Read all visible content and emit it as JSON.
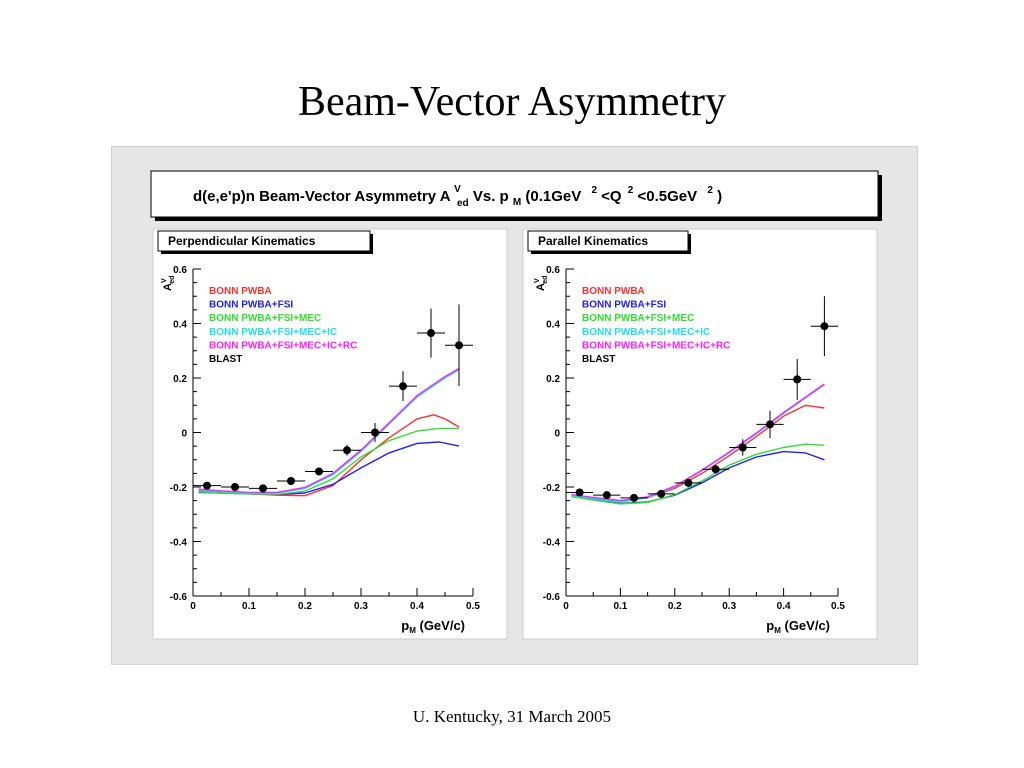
{
  "slide": {
    "title": "Beam-Vector Asymmetry",
    "footer": "U. Kentucky, 31 March 2005"
  },
  "figure": {
    "header": {
      "main": "d(e,e'p)n Beam-Vector Asymmetry A",
      "sup1": "V",
      "sub1": "ed",
      "mid": " Vs. p",
      "sub2": "M",
      "range_a": " (0.1GeV",
      "sup2": "2",
      "range_b": "<Q",
      "sup3": "2",
      "range_c": "<0.5GeV",
      "sup4": "2",
      "range_d": ")"
    }
  },
  "colors": {
    "BONN PWBA": "#ff3030",
    "BONN PWBA+FSI": "#2020ff",
    "BONN PWBA+FSI+MEC": "#30e030",
    "BONN PWBA+FSI+MEC+IC": "#20e0f0",
    "BONN PWBA+FSI+MEC+IC+RC": "#ff20ff",
    "BLAST": "#000000"
  },
  "chart_data": [
    {
      "type": "scatter",
      "title": "Perpendicular Kinematics",
      "xlabel": "p",
      "xlabel_sub": "M",
      "xlabel_unit": " (GeV/c)",
      "ylabel": "A",
      "ylabel_sup": "V",
      "ylabel_sub": "ed",
      "xlim": [
        0,
        0.5
      ],
      "ylim": [
        -0.6,
        0.6
      ],
      "xticks": [
        "0",
        "0.05",
        "0.1",
        "0.15",
        "0.2",
        "0.25",
        "0.3",
        "0.35",
        "0.4",
        "0.45",
        "0.5"
      ],
      "xticks_labeled": [
        "0",
        "0.1",
        "0.2",
        "0.3",
        "0.4",
        "0.5"
      ],
      "yticks_labeled": [
        "-0.6",
        "-0.4",
        "-0.2",
        "0",
        "0.2",
        "0.4",
        "0.6"
      ],
      "legend_position": "top-left",
      "series": [
        {
          "name": "BONN PWBA",
          "kind": "line",
          "x": [
            0.01,
            0.05,
            0.1,
            0.15,
            0.2,
            0.25,
            0.3,
            0.35,
            0.4,
            0.43,
            0.45,
            0.475
          ],
          "y": [
            -0.215,
            -0.22,
            -0.225,
            -0.23,
            -0.232,
            -0.195,
            -0.1,
            -0.02,
            0.05,
            0.065,
            0.05,
            0.02
          ]
        },
        {
          "name": "BONN PWBA+FSI",
          "kind": "line",
          "x": [
            0.01,
            0.05,
            0.1,
            0.15,
            0.2,
            0.25,
            0.3,
            0.35,
            0.4,
            0.44,
            0.475
          ],
          "y": [
            -0.22,
            -0.222,
            -0.225,
            -0.228,
            -0.222,
            -0.19,
            -0.13,
            -0.075,
            -0.04,
            -0.035,
            -0.05
          ]
        },
        {
          "name": "BONN PWBA+FSI+MEC",
          "kind": "line",
          "x": [
            0.01,
            0.05,
            0.1,
            0.15,
            0.2,
            0.25,
            0.3,
            0.35,
            0.4,
            0.44,
            0.475
          ],
          "y": [
            -0.218,
            -0.222,
            -0.226,
            -0.227,
            -0.215,
            -0.17,
            -0.09,
            -0.03,
            0.005,
            0.015,
            0.015
          ]
        },
        {
          "name": "BONN PWBA+FSI+MEC+IC",
          "kind": "line",
          "x": [
            0.01,
            0.05,
            0.1,
            0.15,
            0.2,
            0.25,
            0.3,
            0.35,
            0.4,
            0.45,
            0.475
          ],
          "y": [
            -0.212,
            -0.217,
            -0.222,
            -0.222,
            -0.205,
            -0.155,
            -0.07,
            0.03,
            0.13,
            0.2,
            0.23
          ]
        },
        {
          "name": "BONN PWBA+FSI+MEC+IC+RC",
          "kind": "line",
          "x": [
            0.01,
            0.05,
            0.1,
            0.15,
            0.2,
            0.25,
            0.3,
            0.35,
            0.4,
            0.45,
            0.475
          ],
          "y": [
            -0.208,
            -0.214,
            -0.22,
            -0.22,
            -0.202,
            -0.15,
            -0.065,
            0.035,
            0.135,
            0.205,
            0.235
          ]
        },
        {
          "name": "BLAST",
          "kind": "points",
          "x": [
            0.025,
            0.075,
            0.125,
            0.175,
            0.225,
            0.275,
            0.325,
            0.375,
            0.425,
            0.475
          ],
          "y": [
            -0.195,
            -0.2,
            -0.205,
            -0.178,
            -0.143,
            -0.065,
            0.0,
            0.17,
            0.365,
            0.32
          ],
          "yerr": [
            0.008,
            0.008,
            0.008,
            0.008,
            0.012,
            0.02,
            0.035,
            0.055,
            0.09,
            0.15
          ],
          "xerr": [
            0.025,
            0.025,
            0.025,
            0.025,
            0.025,
            0.025,
            0.025,
            0.025,
            0.025,
            0.025
          ]
        }
      ]
    },
    {
      "type": "scatter",
      "title": "Parallel Kinematics",
      "xlabel": "p",
      "xlabel_sub": "M",
      "xlabel_unit": " (GeV/c)",
      "ylabel": "A",
      "ylabel_sup": "V",
      "ylabel_sub": "ed",
      "xlim": [
        0,
        0.5
      ],
      "ylim": [
        -0.6,
        0.6
      ],
      "xticks": [
        "0",
        "0.05",
        "0.1",
        "0.15",
        "0.2",
        "0.25",
        "0.3",
        "0.35",
        "0.4",
        "0.45",
        "0.5"
      ],
      "xticks_labeled": [
        "0",
        "0.1",
        "0.2",
        "0.3",
        "0.4",
        "0.5"
      ],
      "yticks_labeled": [
        "-0.6",
        "-0.4",
        "-0.2",
        "0",
        "0.2",
        "0.4",
        "0.6"
      ],
      "legend_position": "top-left",
      "series": [
        {
          "name": "BONN PWBA",
          "kind": "line",
          "x": [
            0.01,
            0.05,
            0.1,
            0.15,
            0.2,
            0.25,
            0.3,
            0.35,
            0.4,
            0.44,
            0.475
          ],
          "y": [
            -0.23,
            -0.24,
            -0.25,
            -0.24,
            -0.205,
            -0.15,
            -0.085,
            -0.015,
            0.06,
            0.1,
            0.09
          ]
        },
        {
          "name": "BONN PWBA+FSI",
          "kind": "line",
          "x": [
            0.01,
            0.05,
            0.1,
            0.15,
            0.2,
            0.25,
            0.3,
            0.35,
            0.4,
            0.44,
            0.475
          ],
          "y": [
            -0.235,
            -0.245,
            -0.26,
            -0.255,
            -0.23,
            -0.185,
            -0.13,
            -0.09,
            -0.07,
            -0.075,
            -0.1
          ]
        },
        {
          "name": "BONN PWBA+FSI+MEC",
          "kind": "line",
          "x": [
            0.01,
            0.05,
            0.1,
            0.15,
            0.2,
            0.25,
            0.3,
            0.35,
            0.4,
            0.44,
            0.475
          ],
          "y": [
            -0.235,
            -0.248,
            -0.262,
            -0.257,
            -0.228,
            -0.178,
            -0.12,
            -0.08,
            -0.055,
            -0.043,
            -0.047
          ]
        },
        {
          "name": "BONN PWBA+FSI+MEC+IC",
          "kind": "line",
          "x": [
            0.01,
            0.05,
            0.1,
            0.15,
            0.2,
            0.25,
            0.3,
            0.35,
            0.4,
            0.45,
            0.475
          ],
          "y": [
            -0.232,
            -0.243,
            -0.255,
            -0.24,
            -0.2,
            -0.14,
            -0.075,
            -0.005,
            0.07,
            0.14,
            0.175
          ]
        },
        {
          "name": "BONN PWBA+FSI+MEC+IC+RC",
          "kind": "line",
          "x": [
            0.01,
            0.05,
            0.1,
            0.15,
            0.2,
            0.25,
            0.3,
            0.35,
            0.4,
            0.45,
            0.475
          ],
          "y": [
            -0.228,
            -0.238,
            -0.25,
            -0.236,
            -0.197,
            -0.138,
            -0.072,
            -0.002,
            0.073,
            0.143,
            0.178
          ]
        },
        {
          "name": "BLAST",
          "kind": "points",
          "x": [
            0.025,
            0.075,
            0.125,
            0.175,
            0.225,
            0.275,
            0.325,
            0.375,
            0.425,
            0.475
          ],
          "y": [
            -0.22,
            -0.23,
            -0.24,
            -0.225,
            -0.185,
            -0.135,
            -0.055,
            0.03,
            0.195,
            0.39
          ],
          "yerr": [
            0.008,
            0.008,
            0.008,
            0.008,
            0.01,
            0.015,
            0.03,
            0.05,
            0.075,
            0.11
          ],
          "xerr": [
            0.025,
            0.025,
            0.025,
            0.025,
            0.025,
            0.025,
            0.025,
            0.025,
            0.025,
            0.025
          ]
        }
      ]
    }
  ]
}
